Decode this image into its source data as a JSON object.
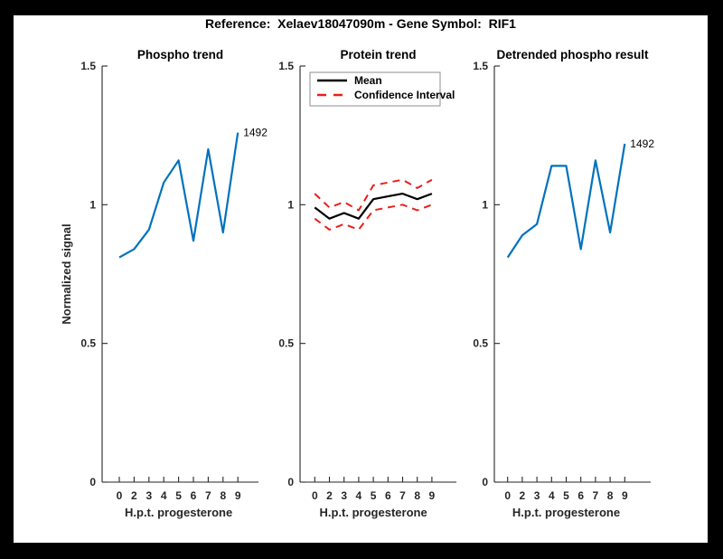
{
  "figure": {
    "title": "Reference:  Xelaev18047090m - Gene Symbol:  RIF1"
  },
  "colors": {
    "blue": "#0072BD",
    "red": "#EB1E19",
    "black": "#000000",
    "axis": "#262626",
    "legend_border": "#8C8C8C",
    "background": "#FFFFFF",
    "frame": "#000000"
  },
  "chart_data": [
    {
      "type": "line",
      "title": "Phospho trend",
      "xlabel": "H.p.t. progesterone",
      "ylabel": "Normalized signal",
      "categories": [
        "0",
        "2",
        "3",
        "4",
        "5",
        "6",
        "7",
        "8",
        "9"
      ],
      "y_ticks": [
        0,
        0.5,
        1,
        1.5
      ],
      "y_tick_labels": [
        "0",
        "0.5",
        "1",
        "1.5"
      ],
      "ylim": [
        0,
        1.5
      ],
      "grid": false,
      "series": [
        {
          "name": "phospho-signal",
          "color": "#0072BD",
          "style": "solid",
          "width": 2.2,
          "values": [
            0.81,
            0.84,
            0.91,
            1.08,
            1.16,
            0.87,
            1.2,
            0.9,
            1.26
          ]
        }
      ],
      "endpoint_label": "1492"
    },
    {
      "type": "line",
      "title": "Protein trend",
      "xlabel": "H.p.t. progesterone",
      "ylabel": "",
      "categories": [
        "0",
        "2",
        "3",
        "4",
        "5",
        "6",
        "7",
        "8",
        "9"
      ],
      "y_ticks": [
        0,
        0.5,
        1,
        1.5
      ],
      "y_tick_labels": [
        "0",
        "0.5",
        "1",
        "1.5"
      ],
      "ylim": [
        0,
        1.5
      ],
      "grid": false,
      "legend": {
        "position": "northwest",
        "entries": [
          {
            "label": "Mean",
            "color": "#000000",
            "style": "solid"
          },
          {
            "label": "Confidence Interval",
            "color": "#EB1E19",
            "style": "dashed"
          }
        ]
      },
      "series": [
        {
          "name": "ci-upper",
          "color": "#EB1E19",
          "style": "dashed",
          "width": 2,
          "values": [
            1.04,
            0.99,
            1.01,
            0.98,
            1.07,
            1.08,
            1.09,
            1.06,
            1.09
          ]
        },
        {
          "name": "ci-lower",
          "color": "#EB1E19",
          "style": "dashed",
          "width": 2,
          "values": [
            0.95,
            0.91,
            0.93,
            0.91,
            0.98,
            0.99,
            1.0,
            0.98,
            1.0
          ]
        },
        {
          "name": "mean",
          "color": "#000000",
          "style": "solid",
          "width": 2.2,
          "values": [
            0.99,
            0.95,
            0.97,
            0.95,
            1.02,
            1.03,
            1.04,
            1.02,
            1.04
          ]
        }
      ]
    },
    {
      "type": "line",
      "title": "Detrended phospho result",
      "xlabel": "H.p.t. progesterone",
      "ylabel": "",
      "categories": [
        "0",
        "2",
        "3",
        "4",
        "5",
        "6",
        "7",
        "8",
        "9"
      ],
      "y_ticks": [
        0,
        0.5,
        1,
        1.5
      ],
      "y_tick_labels": [
        "0",
        "0.5",
        "1",
        "1.5"
      ],
      "ylim": [
        0,
        1.5
      ],
      "grid": false,
      "series": [
        {
          "name": "detrended-phospho-signal",
          "color": "#0072BD",
          "style": "solid",
          "width": 2.2,
          "values": [
            0.81,
            0.89,
            0.93,
            1.14,
            1.14,
            0.84,
            1.16,
            0.9,
            1.22
          ]
        }
      ],
      "endpoint_label": "1492"
    }
  ]
}
